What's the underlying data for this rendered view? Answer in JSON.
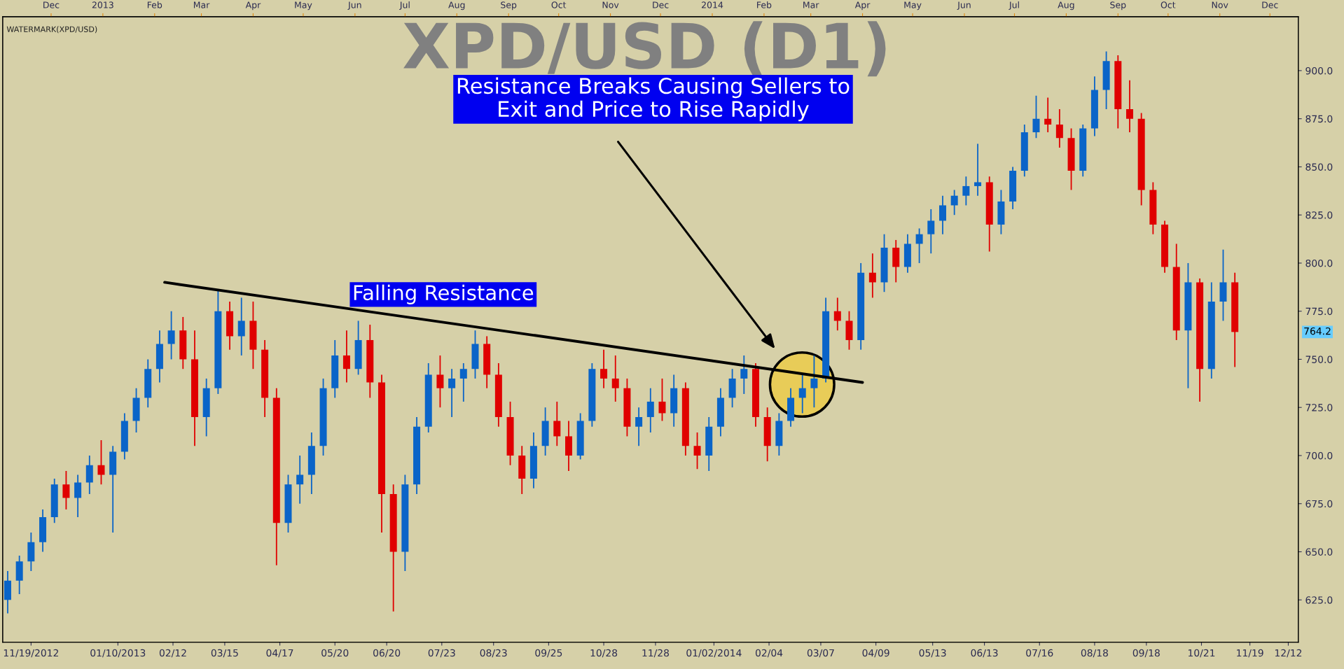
{
  "chart_data": {
    "type": "candlestick",
    "title": "XPD/USD (D1)",
    "colors": [
      "#0a64c8",
      "#0a64c8",
      "#0a64c8",
      "#0a64c8",
      "#0a64c8",
      "#e00000",
      "#0a64c8",
      "#0a64c8",
      "#e00000",
      "#0a64c8",
      "#0a64c8",
      "#0a64c8",
      "#0a64c8",
      "#0a64c8",
      "#0a64c8",
      "#e00000",
      "#e00000",
      "#0a64c8",
      "#0a64c8",
      "#e00000",
      "#0a64c8",
      "#e00000",
      "#e00000",
      "#e00000",
      "#0a64c8",
      "#0a64c8",
      "#0a64c8",
      "#0a64c8",
      "#0a64c8",
      "#e00000",
      "#0a64c8",
      "#e00000",
      "#e00000",
      "#e00000",
      "#0a64c8",
      "#0a64c8",
      "#0a64c8",
      "#e00000",
      "#0a64c8",
      "#0a64c8",
      "#0a64c8",
      "#e00000",
      "#e00000",
      "#e00000",
      "#e00000",
      "#0a64c8",
      "#0a64c8",
      "#e00000",
      "#e00000",
      "#0a64c8",
      "#0a64c8",
      "#e00000",
      "#e00000",
      "#e00000",
      "#0a64c8",
      "#0a64c8",
      "#e00000",
      "#0a64c8",
      "#e00000",
      "#e00000",
      "#0a64c8",
      "#0a64c8",
      "#0a64c8",
      "#0a64c8",
      "#e00000",
      "#e00000",
      "#0a64c8",
      "#0a64c8",
      "#0a64c8",
      "#0a64c8",
      "#0a64c8",
      "#e00000",
      "#e00000",
      "#0a64c8",
      "#e00000",
      "#0a64c8",
      "#e00000",
      "#0a64c8",
      "#0a64c8",
      "#0a64c8",
      "#0a64c8",
      "#0a64c8",
      "#0a64c8",
      "#0a64c8",
      "#e00000",
      "#0a64c8",
      "#0a64c8",
      "#0a64c8",
      "#0a64c8",
      "#e00000",
      "#e00000",
      "#e00000",
      "#0a64c8",
      "#0a64c8",
      "#0a64c8",
      "#e00000",
      "#e00000",
      "#e00000",
      "#e00000",
      "#e00000",
      "#e00000",
      "#0a64c8",
      "#e00000",
      "#0a64c8",
      "#0a64c8",
      "#e00000"
    ],
    "x": [
      "2012-11-05",
      "2012-11-12",
      "2012-11-19",
      "2012-11-26",
      "2012-12-03",
      "2012-12-10",
      "2012-12-17",
      "2012-12-24",
      "2012-12-31",
      "2013-01-07",
      "2013-01-14",
      "2013-01-21",
      "2013-01-28",
      "2013-02-04",
      "2013-02-11",
      "2013-02-18",
      "2013-02-25",
      "2013-03-04",
      "2013-03-11",
      "2013-03-18",
      "2013-03-25",
      "2013-04-01",
      "2013-04-08",
      "2013-04-15",
      "2013-04-22",
      "2013-04-29",
      "2013-05-06",
      "2013-05-13",
      "2013-05-20",
      "2013-05-27",
      "2013-06-03",
      "2013-06-10",
      "2013-06-17",
      "2013-06-24",
      "2013-07-01",
      "2013-07-08",
      "2013-07-15",
      "2013-07-22",
      "2013-07-29",
      "2013-08-05",
      "2013-08-12",
      "2013-08-19",
      "2013-08-26",
      "2013-09-02",
      "2013-09-09",
      "2013-09-16",
      "2013-09-23",
      "2013-09-30",
      "2013-10-07",
      "2013-10-14",
      "2013-10-21",
      "2013-10-28",
      "2013-11-04",
      "2013-11-11",
      "2013-11-18",
      "2013-11-25",
      "2013-12-02",
      "2013-12-09",
      "2013-12-16",
      "2013-12-23",
      "2013-12-30",
      "2014-01-06",
      "2014-01-13",
      "2014-01-20",
      "2014-01-27",
      "2014-02-03",
      "2014-02-10",
      "2014-02-17",
      "2014-02-24",
      "2014-03-03",
      "2014-03-10",
      "2014-03-17",
      "2014-03-24",
      "2014-03-31",
      "2014-04-07",
      "2014-04-14",
      "2014-04-21",
      "2014-04-28",
      "2014-05-05",
      "2014-05-12",
      "2014-05-19",
      "2014-05-26",
      "2014-06-02",
      "2014-06-09",
      "2014-06-16",
      "2014-06-23",
      "2014-06-30",
      "2014-07-07",
      "2014-07-14",
      "2014-07-21",
      "2014-07-28",
      "2014-08-04",
      "2014-08-11",
      "2014-08-18",
      "2014-08-25",
      "2014-09-01",
      "2014-09-08",
      "2014-09-15",
      "2014-09-22",
      "2014-09-29",
      "2014-10-06",
      "2014-10-13",
      "2014-10-20",
      "2014-10-27",
      "2014-11-03",
      "2014-11-10"
    ],
    "ohlc": [
      [
        625,
        640,
        618,
        635
      ],
      [
        635,
        648,
        628,
        645
      ],
      [
        645,
        660,
        640,
        655
      ],
      [
        655,
        672,
        650,
        668
      ],
      [
        668,
        688,
        665,
        685
      ],
      [
        685,
        692,
        672,
        678
      ],
      [
        678,
        690,
        668,
        686
      ],
      [
        686,
        700,
        680,
        695
      ],
      [
        695,
        708,
        685,
        690
      ],
      [
        690,
        705,
        660,
        702
      ],
      [
        702,
        722,
        698,
        718
      ],
      [
        718,
        735,
        712,
        730
      ],
      [
        730,
        750,
        725,
        745
      ],
      [
        745,
        765,
        738,
        758
      ],
      [
        758,
        775,
        750,
        765
      ],
      [
        765,
        772,
        745,
        750
      ],
      [
        750,
        765,
        705,
        720
      ],
      [
        720,
        740,
        710,
        735
      ],
      [
        735,
        786,
        732,
        775
      ],
      [
        775,
        780,
        755,
        762
      ],
      [
        762,
        782,
        752,
        770
      ],
      [
        770,
        780,
        745,
        755
      ],
      [
        755,
        760,
        720,
        730
      ],
      [
        730,
        735,
        643,
        665
      ],
      [
        665,
        690,
        660,
        685
      ],
      [
        685,
        700,
        675,
        690
      ],
      [
        690,
        712,
        680,
        705
      ],
      [
        705,
        740,
        700,
        735
      ],
      [
        735,
        760,
        730,
        752
      ],
      [
        752,
        765,
        738,
        745
      ],
      [
        745,
        770,
        742,
        760
      ],
      [
        760,
        768,
        730,
        738
      ],
      [
        738,
        742,
        660,
        680
      ],
      [
        680,
        685,
        619,
        650
      ],
      [
        650,
        690,
        640,
        685
      ],
      [
        685,
        720,
        680,
        715
      ],
      [
        715,
        748,
        712,
        742
      ],
      [
        742,
        752,
        725,
        735
      ],
      [
        735,
        745,
        720,
        740
      ],
      [
        740,
        748,
        728,
        745
      ],
      [
        745,
        765,
        740,
        758
      ],
      [
        758,
        762,
        735,
        742
      ],
      [
        742,
        748,
        715,
        720
      ],
      [
        720,
        728,
        695,
        700
      ],
      [
        700,
        705,
        680,
        688
      ],
      [
        688,
        712,
        683,
        705
      ],
      [
        705,
        725,
        700,
        718
      ],
      [
        718,
        728,
        705,
        710
      ],
      [
        710,
        718,
        692,
        700
      ],
      [
        700,
        722,
        698,
        718
      ],
      [
        718,
        748,
        715,
        745
      ],
      [
        745,
        755,
        735,
        740
      ],
      [
        740,
        752,
        728,
        735
      ],
      [
        735,
        740,
        710,
        715
      ],
      [
        715,
        725,
        705,
        720
      ],
      [
        720,
        735,
        712,
        728
      ],
      [
        728,
        740,
        718,
        722
      ],
      [
        722,
        742,
        715,
        735
      ],
      [
        735,
        738,
        700,
        705
      ],
      [
        705,
        712,
        693,
        700
      ],
      [
        700,
        720,
        692,
        715
      ],
      [
        715,
        735,
        710,
        730
      ],
      [
        730,
        745,
        725,
        740
      ],
      [
        740,
        752,
        732,
        745
      ],
      [
        745,
        748,
        715,
        720
      ],
      [
        720,
        725,
        697,
        705
      ],
      [
        705,
        722,
        700,
        718
      ],
      [
        718,
        735,
        715,
        730
      ],
      [
        730,
        742,
        722,
        735
      ],
      [
        735,
        752,
        725,
        740
      ],
      [
        740,
        782,
        738,
        775
      ],
      [
        775,
        782,
        765,
        770
      ],
      [
        770,
        775,
        755,
        760
      ],
      [
        760,
        800,
        755,
        795
      ],
      [
        795,
        805,
        782,
        790
      ],
      [
        790,
        815,
        785,
        808
      ],
      [
        808,
        812,
        790,
        798
      ],
      [
        798,
        815,
        795,
        810
      ],
      [
        810,
        818,
        800,
        815
      ],
      [
        815,
        828,
        805,
        822
      ],
      [
        822,
        835,
        815,
        830
      ],
      [
        830,
        838,
        825,
        835
      ],
      [
        835,
        845,
        830,
        840
      ],
      [
        840,
        862,
        835,
        842
      ],
      [
        842,
        845,
        806,
        820
      ],
      [
        820,
        838,
        815,
        832
      ],
      [
        832,
        850,
        828,
        848
      ],
      [
        848,
        872,
        845,
        868
      ],
      [
        868,
        887,
        865,
        875
      ],
      [
        875,
        886,
        868,
        872
      ],
      [
        872,
        880,
        860,
        865
      ],
      [
        865,
        870,
        838,
        848
      ],
      [
        848,
        872,
        845,
        870
      ],
      [
        870,
        897,
        866,
        890
      ],
      [
        890,
        910,
        880,
        905
      ],
      [
        905,
        908,
        870,
        880
      ],
      [
        880,
        895,
        868,
        875
      ],
      [
        875,
        878,
        830,
        838
      ],
      [
        838,
        842,
        815,
        820
      ],
      [
        820,
        822,
        795,
        798
      ],
      [
        798,
        810,
        760,
        765
      ],
      [
        765,
        800,
        735,
        790
      ],
      [
        790,
        792,
        728,
        745
      ],
      [
        745,
        790,
        740,
        780
      ],
      [
        780,
        807,
        770,
        790
      ],
      [
        790,
        795,
        746,
        764.2
      ]
    ],
    "series": [
      {
        "type": "line",
        "x": [
          "2013-02-07",
          "2014-04-01"
        ],
        "values": [
          790,
          738
        ],
        "color": "#000000"
      }
    ],
    "xlim": [
      "2012-11-02",
      "2014-12-18"
    ],
    "xticks": [
      {
        "value": "2012-11-19",
        "label": "11/19/2012"
      },
      {
        "value": "2013-01-10",
        "label": "01/10/2013"
      },
      {
        "value": "2013-02-12",
        "label": "02/12"
      },
      {
        "value": "2013-03-15",
        "label": "03/15"
      },
      {
        "value": "2013-04-17",
        "label": "04/17"
      },
      {
        "value": "2013-05-20",
        "label": "05/20"
      },
      {
        "value": "2013-06-20",
        "label": "06/20"
      },
      {
        "value": "2013-07-23",
        "label": "07/23"
      },
      {
        "value": "2013-08-23",
        "label": "08/23"
      },
      {
        "value": "2013-09-25",
        "label": "09/25"
      },
      {
        "value": "2013-10-28",
        "label": "10/28"
      },
      {
        "value": "2013-11-28",
        "label": "11/28"
      },
      {
        "value": "2014-01-02",
        "label": "01/02/2014"
      },
      {
        "value": "2014-02-04",
        "label": "02/04"
      },
      {
        "value": "2014-03-07",
        "label": "03/07"
      },
      {
        "value": "2014-04-09",
        "label": "04/09"
      },
      {
        "value": "2014-05-13",
        "label": "05/13"
      },
      {
        "value": "2014-06-13",
        "label": "06/13"
      },
      {
        "value": "2014-07-16",
        "label": "07/16"
      },
      {
        "value": "2014-08-18",
        "label": "08/18"
      },
      {
        "value": "2014-09-18",
        "label": "09/18"
      },
      {
        "value": "2014-10-21",
        "label": "10/21"
      },
      {
        "value": "2014-11-19",
        "label": "11/19"
      },
      {
        "value": "2014-12-12",
        "label": "12/12"
      }
    ],
    "x2lim": [
      "2012-11-02",
      "2014-12-18"
    ],
    "x2ticks": [
      {
        "value": "2012-12-01",
        "label": "Dec"
      },
      {
        "value": "2013-01-01",
        "label": "2013"
      },
      {
        "value": "2013-02-01",
        "label": "Feb"
      },
      {
        "value": "2013-03-01",
        "label": "Mar"
      },
      {
        "value": "2013-04-01",
        "label": "Apr"
      },
      {
        "value": "2013-05-01",
        "label": "May"
      },
      {
        "value": "2013-06-01",
        "label": "Jun"
      },
      {
        "value": "2013-07-01",
        "label": "Jul"
      },
      {
        "value": "2013-08-01",
        "label": "Aug"
      },
      {
        "value": "2013-09-01",
        "label": "Sep"
      },
      {
        "value": "2013-10-01",
        "label": "Oct"
      },
      {
        "value": "2013-11-01",
        "label": "Nov"
      },
      {
        "value": "2013-12-01",
        "label": "Dec"
      },
      {
        "value": "2014-01-01",
        "label": "2014"
      },
      {
        "value": "2014-02-01",
        "label": "Feb"
      },
      {
        "value": "2014-03-01",
        "label": "Mar"
      },
      {
        "value": "2014-04-01",
        "label": "Apr"
      },
      {
        "value": "2014-05-01",
        "label": "May"
      },
      {
        "value": "2014-06-01",
        "label": "Jun"
      },
      {
        "value": "2014-07-01",
        "label": "Jul"
      },
      {
        "value": "2014-08-01",
        "label": "Aug"
      },
      {
        "value": "2014-09-01",
        "label": "Sep"
      },
      {
        "value": "2014-10-01",
        "label": "Oct"
      },
      {
        "value": "2014-11-01",
        "label": "Nov"
      },
      {
        "value": "2014-12-01",
        "label": "Dec"
      }
    ],
    "ylim": [
      603,
      928
    ],
    "yticks": [
      {
        "value": 625,
        "label": "625.0"
      },
      {
        "value": 650,
        "label": "650.0"
      },
      {
        "value": 675,
        "label": "675.0"
      },
      {
        "value": 700,
        "label": "700.0"
      },
      {
        "value": 725,
        "label": "725.0"
      },
      {
        "value": 750,
        "label": "750.0"
      },
      {
        "value": 775,
        "label": "775.0"
      },
      {
        "value": 800,
        "label": "800.0"
      },
      {
        "value": 825,
        "label": "825.0"
      },
      {
        "value": 850,
        "label": "850.0"
      },
      {
        "value": 875,
        "label": "875.0"
      },
      {
        "value": 900,
        "label": "900.0"
      }
    ],
    "annotations": [
      "WATERMARK(XPD/USD)",
      "Falling Resistance",
      "Resistance Breaks Causing Sellers to\nExit and Price to Rise Rapidly",
      "764.2"
    ],
    "grid": false,
    "legend": false
  }
}
